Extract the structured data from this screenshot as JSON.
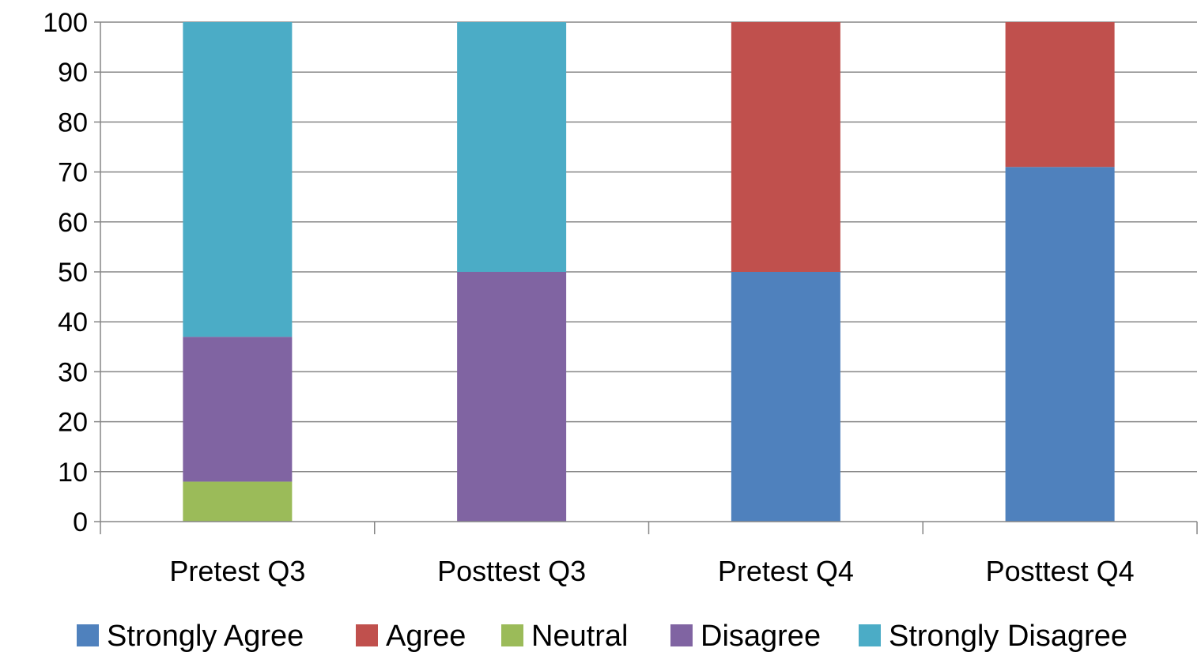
{
  "chart_data": {
    "type": "bar",
    "stacked": true,
    "categories": [
      "Pretest Q3",
      "Posttest Q3",
      "Pretest Q4",
      "Posttest Q4"
    ],
    "series": [
      {
        "name": "Strongly Agree",
        "color": "#4F81BD",
        "values": [
          0,
          0,
          50,
          71
        ]
      },
      {
        "name": "Agree",
        "color": "#C0504D",
        "values": [
          0,
          0,
          50,
          29
        ]
      },
      {
        "name": "Neutral",
        "color": "#9BBB59",
        "values": [
          8,
          0,
          0,
          0
        ]
      },
      {
        "name": "Disagree",
        "color": "#8064A2",
        "values": [
          29,
          50,
          0,
          0
        ]
      },
      {
        "name": "Strongly Disagree",
        "color": "#4BACC6",
        "values": [
          63,
          50,
          0,
          0
        ]
      }
    ],
    "ylim": [
      0,
      100
    ],
    "yticks": [
      0,
      10,
      20,
      30,
      40,
      50,
      60,
      70,
      80,
      90,
      100
    ],
    "grid": true,
    "legend_position": "bottom",
    "gridline_color": "#868686"
  }
}
